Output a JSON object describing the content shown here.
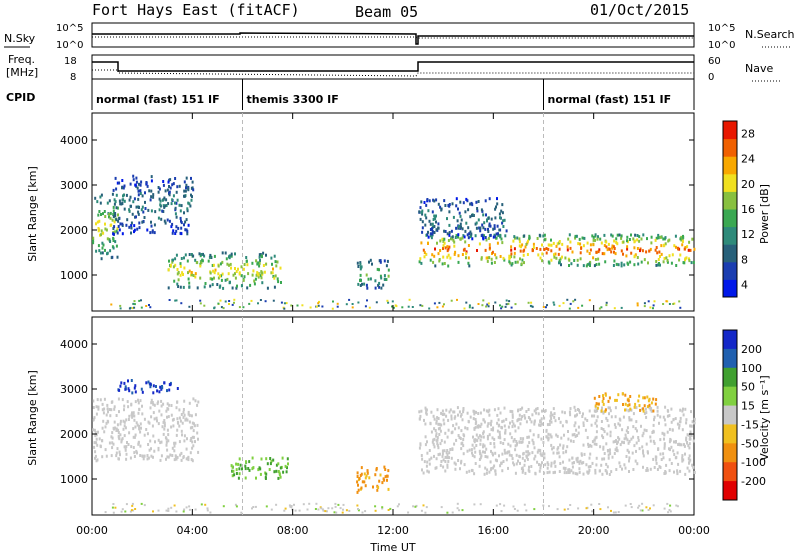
{
  "header": {
    "station": "Fort Hays East (fitACF)",
    "beam": "Beam 05",
    "date": "01/Oct/2015"
  },
  "left_labels": {
    "nsky": "N.Sky",
    "freq": "Freq.",
    "freq_unit": "[MHz]",
    "cpid": "CPID"
  },
  "right_labels": {
    "nsearch": "N.Search",
    "nave": "Nave"
  },
  "noise_panel": {
    "ytick_left": [
      "10^5",
      "10^0"
    ],
    "ytick_right": [
      "10^5",
      "10^0"
    ]
  },
  "freq_panel": {
    "ytick_left": [
      "18",
      "8"
    ],
    "ytick_right": [
      "60",
      "0"
    ]
  },
  "cpid_segments": [
    {
      "label": "normal (fast) 151 IF",
      "start_hour": 0
    },
    {
      "label": "themis 3300 IF",
      "start_hour": 6
    },
    {
      "label": "normal (fast) 151 IF",
      "start_hour": 18
    }
  ],
  "panels": {
    "power": {
      "ylabel": "Slant Range [km]",
      "colorbar_label": "Power [dB]"
    },
    "velocity": {
      "ylabel": "Slant Range [km]",
      "colorbar_label": "Velocity [m s⁻¹]"
    }
  },
  "xaxis": {
    "label": "Time UT"
  },
  "chart_data": {
    "type": "heatmap",
    "title": "Fort Hays East (fitACF)",
    "xlabel": "Time UT",
    "ylabel": "Slant Range [km]",
    "xticks": [
      "00:00",
      "04:00",
      "08:00",
      "12:00",
      "16:00",
      "20:00",
      "00:00"
    ],
    "xlim_hours": [
      0,
      24
    ],
    "ylim_km": [
      200,
      4600
    ],
    "yticks": [
      1000,
      2000,
      3000,
      4000
    ],
    "power_colorbar": {
      "ticks": [
        4,
        8,
        12,
        16,
        20,
        24,
        28
      ],
      "colors": [
        "#0018e8",
        "#1a3db0",
        "#27607a",
        "#2e8a7a",
        "#3aa852",
        "#88c040",
        "#f0e020",
        "#f8a800",
        "#f06000",
        "#e81800"
      ]
    },
    "velocity_colorbar": {
      "ticks": [
        200,
        100,
        50,
        15,
        -15,
        -50,
        -100,
        -200
      ],
      "colors": [
        "#1428c8",
        "#2060b0",
        "#40a030",
        "#80d040",
        "#c8c8c8",
        "#f0c020",
        "#f09010",
        "#f05010",
        "#e00000"
      ]
    },
    "power_features": [
      {
        "t0": 0.0,
        "t1": 1.0,
        "r0": 1350,
        "r1": 2800,
        "level": 20
      },
      {
        "t0": 0.8,
        "t1": 4.0,
        "r0": 1900,
        "r1": 3200,
        "level": 10
      },
      {
        "t0": 3.0,
        "t1": 7.5,
        "r0": 700,
        "r1": 1500,
        "level": 22
      },
      {
        "t0": 10.5,
        "t1": 11.8,
        "r0": 700,
        "r1": 1350,
        "level": 16
      },
      {
        "t0": 13.0,
        "t1": 24.0,
        "r0": 1200,
        "r1": 1900,
        "level": 28
      },
      {
        "t0": 13.0,
        "t1": 16.5,
        "r0": 1800,
        "r1": 2700,
        "level": 10
      }
    ],
    "velocity_features": [
      {
        "t0": 0.0,
        "t1": 4.2,
        "r0": 1400,
        "r1": 2800,
        "velocity": 0
      },
      {
        "t0": 1.0,
        "t1": 3.5,
        "r0": 2900,
        "r1": 3200,
        "velocity": 200
      },
      {
        "t0": 5.5,
        "t1": 7.8,
        "r0": 1000,
        "r1": 1500,
        "velocity": 50
      },
      {
        "t0": 10.5,
        "t1": 11.8,
        "r0": 700,
        "r1": 1300,
        "velocity": -60
      },
      {
        "t0": 13.0,
        "t1": 24.0,
        "r0": 1100,
        "r1": 2600,
        "velocity": 0
      },
      {
        "t0": 20.0,
        "t1": 22.5,
        "r0": 2500,
        "r1": 2900,
        "velocity": -50
      }
    ]
  }
}
